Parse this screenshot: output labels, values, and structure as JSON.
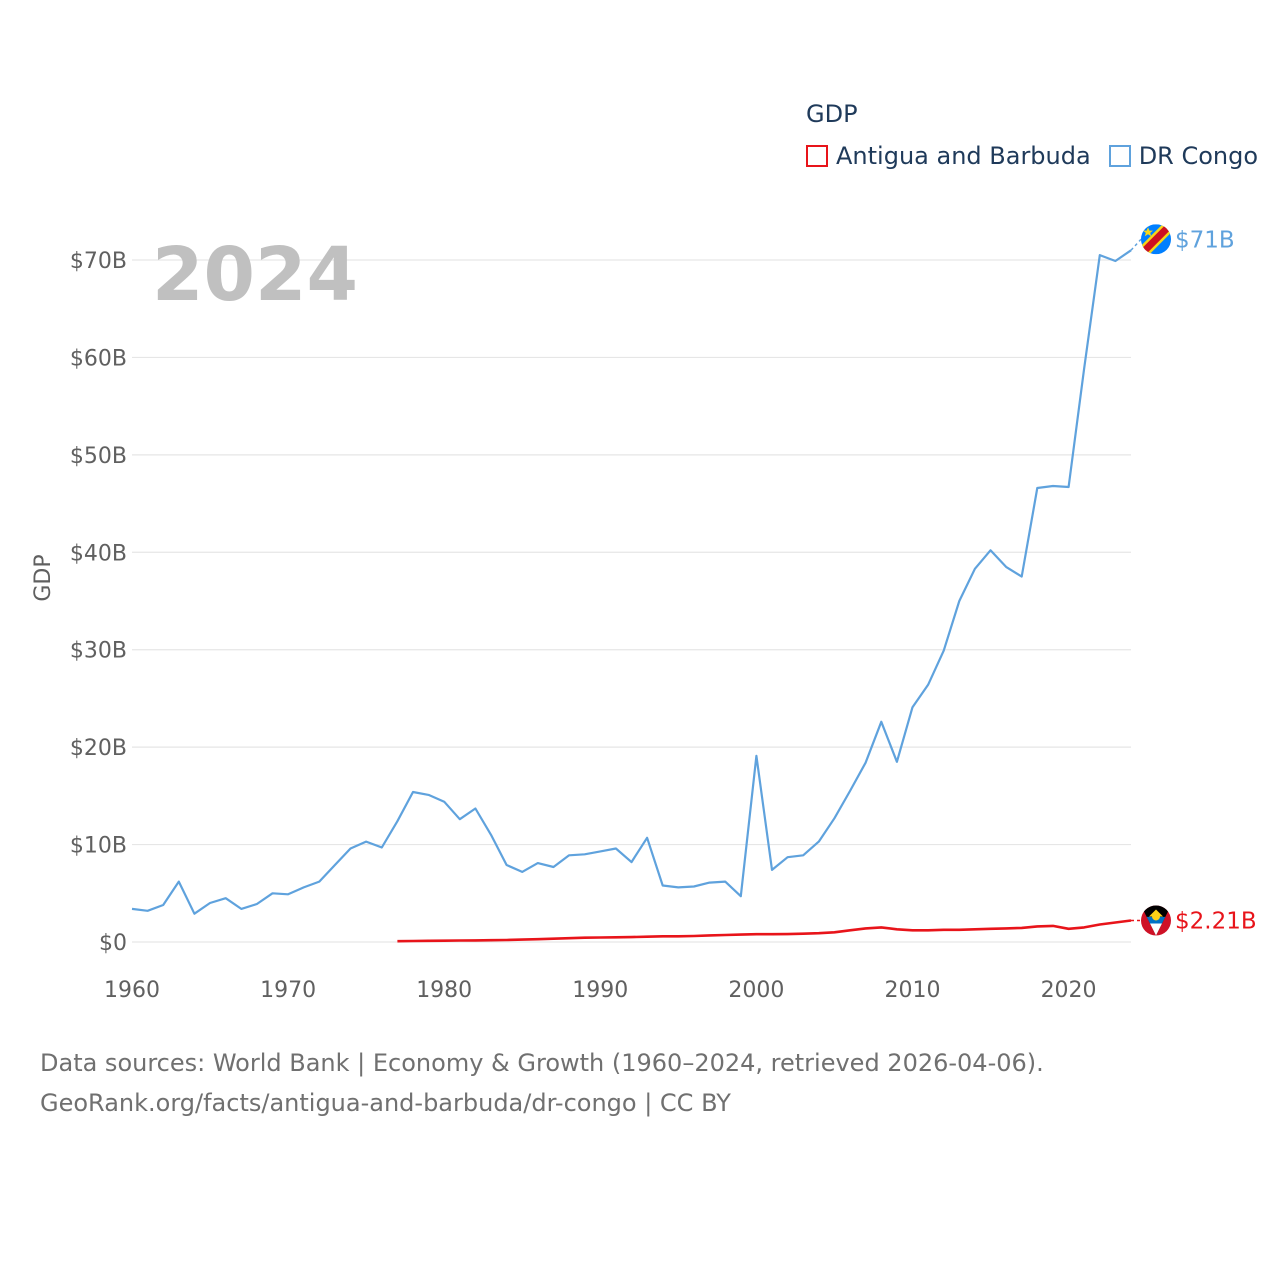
{
  "chart_data": {
    "type": "line",
    "big_year_label": "2024",
    "ylabel": "GDP",
    "xlabel": "",
    "xlim": [
      1960,
      2024
    ],
    "ylim": [
      0,
      70
    ],
    "x_ticks": [
      "1960",
      "1970",
      "1980",
      "1990",
      "2000",
      "2010",
      "2020"
    ],
    "y_ticks": [
      {
        "value": 0,
        "label": "$0"
      },
      {
        "value": 10,
        "label": "$10B"
      },
      {
        "value": 20,
        "label": "$20B"
      },
      {
        "value": 30,
        "label": "$30B"
      },
      {
        "value": 40,
        "label": "$40B"
      },
      {
        "value": 50,
        "label": "$50B"
      },
      {
        "value": 60,
        "label": "$60B"
      },
      {
        "value": 70,
        "label": "$70B"
      }
    ],
    "grid": true,
    "legend_title": "GDP",
    "legend_position": "top-right",
    "series": [
      {
        "name": "Antigua and Barbuda",
        "color": "#e8141a",
        "end_label": "$2.21B",
        "flag_icon": "antigua-and-barbuda-flag-icon",
        "x": [
          1977,
          1978,
          1979,
          1980,
          1981,
          1982,
          1983,
          1984,
          1985,
          1986,
          1987,
          1988,
          1989,
          1990,
          1991,
          1992,
          1993,
          1994,
          1995,
          1996,
          1997,
          1998,
          1999,
          2000,
          2001,
          2002,
          2003,
          2004,
          2005,
          2006,
          2007,
          2008,
          2009,
          2010,
          2011,
          2012,
          2013,
          2014,
          2015,
          2016,
          2017,
          2018,
          2019,
          2020,
          2021,
          2022,
          2023,
          2024
        ],
        "values": [
          0.08,
          0.1,
          0.12,
          0.13,
          0.15,
          0.16,
          0.18,
          0.21,
          0.25,
          0.29,
          0.34,
          0.39,
          0.44,
          0.46,
          0.48,
          0.5,
          0.54,
          0.59,
          0.58,
          0.62,
          0.68,
          0.72,
          0.76,
          0.8,
          0.8,
          0.81,
          0.85,
          0.9,
          1.0,
          1.2,
          1.4,
          1.5,
          1.3,
          1.2,
          1.2,
          1.25,
          1.25,
          1.3,
          1.35,
          1.4,
          1.45,
          1.6,
          1.65,
          1.35,
          1.5,
          1.8,
          2.0,
          2.21
        ]
      },
      {
        "name": "DR Congo",
        "color": "#5fa2dd",
        "end_label": "$71B",
        "flag_icon": "dr-congo-flag-icon",
        "x": [
          1960,
          1961,
          1962,
          1963,
          1964,
          1965,
          1966,
          1967,
          1968,
          1969,
          1970,
          1971,
          1972,
          1973,
          1974,
          1975,
          1976,
          1977,
          1978,
          1979,
          1980,
          1981,
          1982,
          1983,
          1984,
          1985,
          1986,
          1987,
          1988,
          1989,
          1990,
          1991,
          1992,
          1993,
          1994,
          1995,
          1996,
          1997,
          1998,
          1999,
          2000,
          2001,
          2002,
          2003,
          2004,
          2005,
          2006,
          2007,
          2008,
          2009,
          2010,
          2011,
          2012,
          2013,
          2014,
          2015,
          2016,
          2017,
          2018,
          2019,
          2020,
          2021,
          2022,
          2023,
          2024
        ],
        "values": [
          3.4,
          3.2,
          3.8,
          6.2,
          2.9,
          4.0,
          4.5,
          3.4,
          3.9,
          5.0,
          4.9,
          5.6,
          6.2,
          7.9,
          9.6,
          10.3,
          9.7,
          12.4,
          15.4,
          15.1,
          14.4,
          12.6,
          13.7,
          11.0,
          7.9,
          7.2,
          8.1,
          7.7,
          8.9,
          9.0,
          9.3,
          9.6,
          8.2,
          10.7,
          5.8,
          5.6,
          5.7,
          6.1,
          6.2,
          4.7,
          19.1,
          7.4,
          8.7,
          8.9,
          10.3,
          12.7,
          15.5,
          18.4,
          22.6,
          18.5,
          24.1,
          26.4,
          29.9,
          35.0,
          38.3,
          40.2,
          38.5,
          37.5,
          46.6,
          46.8,
          46.7,
          58.9,
          70.5,
          69.9,
          71.0
        ]
      }
    ]
  },
  "footer": {
    "line1": "Data sources: World Bank | Economy & Growth (1960–2024, retrieved 2026-04-06).",
    "line2": "GeoRank.org/facts/antigua-and-barbuda/dr-congo | CC BY"
  }
}
